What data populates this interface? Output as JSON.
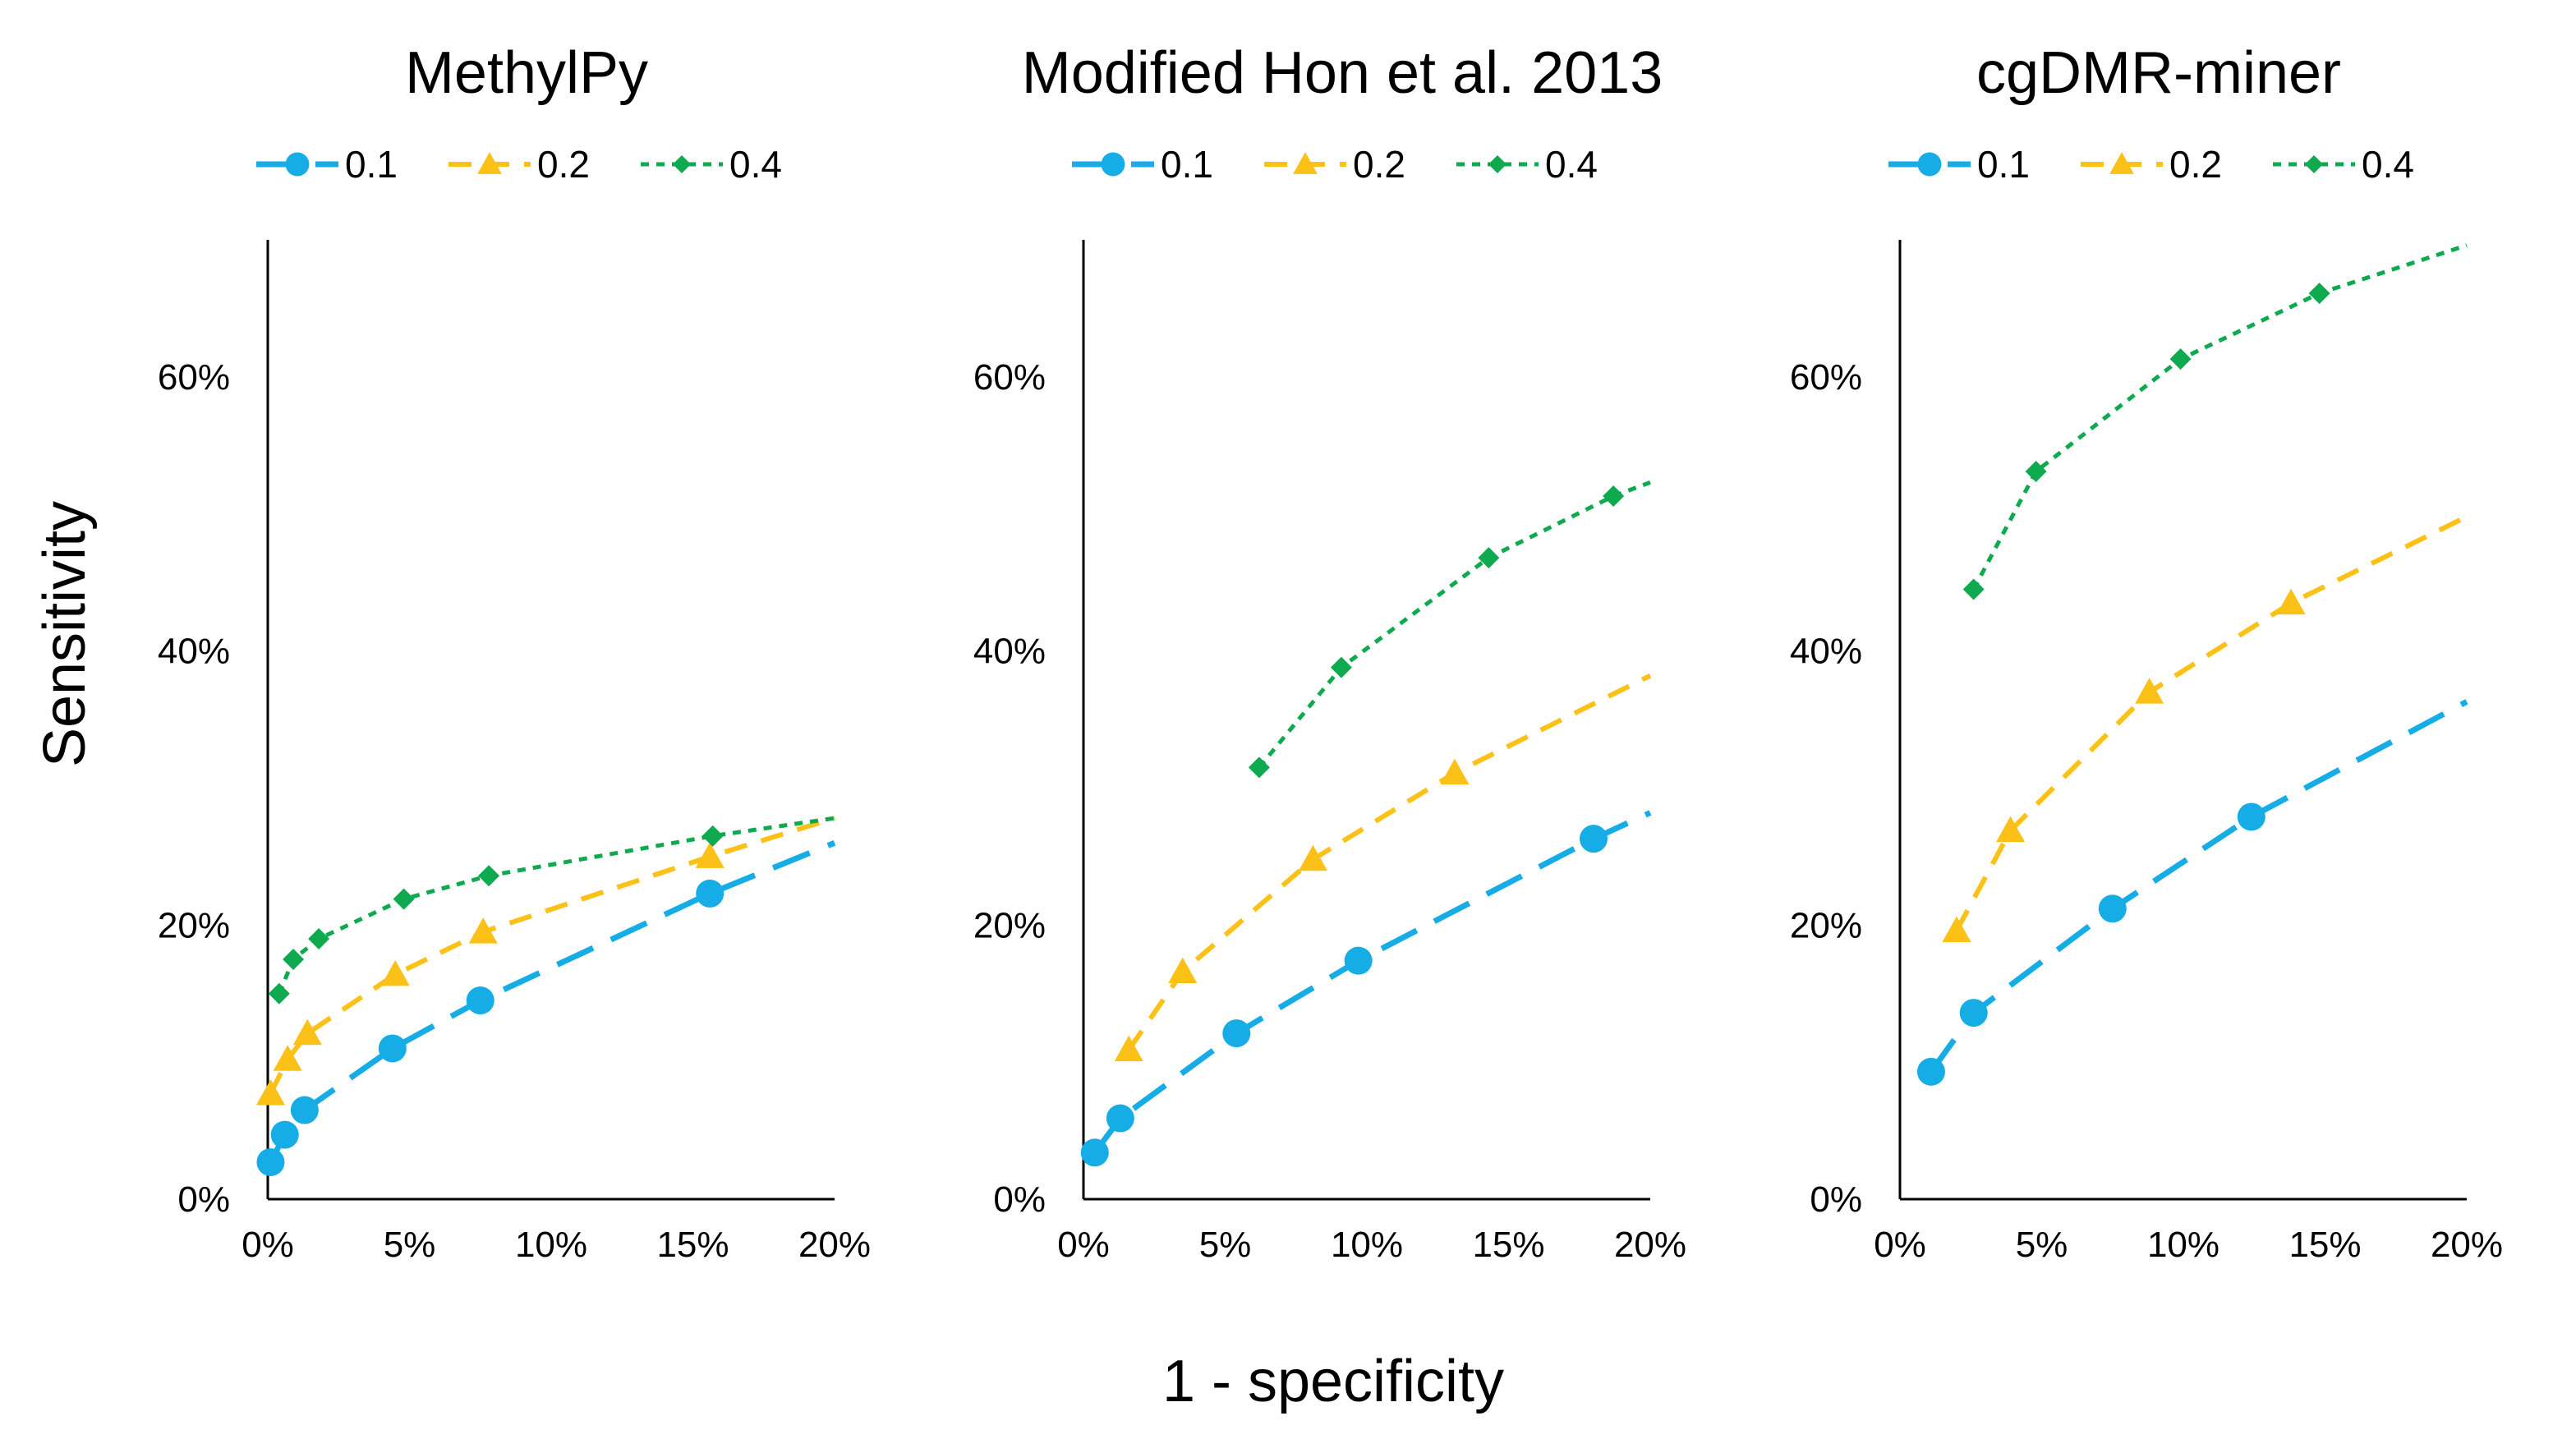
{
  "figure": {
    "ylabel": "Sensitivity",
    "xlabel": "1 - specificity"
  },
  "series_styles": [
    {
      "name": "0.1",
      "color": "#16ACE6",
      "marker": "circle",
      "dash": "long-dash"
    },
    {
      "name": "0.2",
      "color": "#FCC116",
      "marker": "triangle",
      "dash": "dash"
    },
    {
      "name": "0.4",
      "color": "#0FAA4F",
      "marker": "diamond",
      "dash": "dot"
    }
  ],
  "chart_data": [
    {
      "type": "line",
      "title": "MethylPy",
      "xlim": [
        0,
        0.2
      ],
      "ylim": [
        0,
        0.7
      ],
      "xticks": [
        "0%",
        "5%",
        "10%",
        "15%",
        "20%"
      ],
      "yticks": [
        "0%",
        "20%",
        "40%",
        "60%"
      ],
      "legend": [
        "0.1",
        "0.2",
        "0.4"
      ],
      "legend_position": "top",
      "grid": false,
      "series": [
        {
          "name": "0.1",
          "x": [
            0.001,
            0.006,
            0.013,
            0.044,
            0.075,
            0.156,
            0.2
          ],
          "y": [
            0.027,
            0.047,
            0.065,
            0.11,
            0.145,
            0.223,
            0.26
          ],
          "marked": [
            1,
            1,
            1,
            1,
            1,
            1,
            0
          ]
        },
        {
          "name": "0.2",
          "x": [
            0.001,
            0.007,
            0.014,
            0.045,
            0.076,
            0.156,
            0.2
          ],
          "y": [
            0.077,
            0.102,
            0.121,
            0.164,
            0.195,
            0.25,
            0.278
          ],
          "marked": [
            1,
            1,
            1,
            1,
            1,
            1,
            0
          ]
        },
        {
          "name": "0.4",
          "x": [
            0.004,
            0.009,
            0.018,
            0.048,
            0.078,
            0.157,
            0.2
          ],
          "y": [
            0.15,
            0.175,
            0.19,
            0.219,
            0.236,
            0.265,
            0.278
          ],
          "marked": [
            1,
            1,
            1,
            1,
            1,
            1,
            0
          ]
        }
      ]
    },
    {
      "type": "line",
      "title": "Modified Hon et al. 2013",
      "xlim": [
        0,
        0.2
      ],
      "ylim": [
        0,
        0.7
      ],
      "xticks": [
        "0%",
        "5%",
        "10%",
        "15%",
        "20%"
      ],
      "yticks": [
        "0%",
        "20%",
        "40%",
        "60%"
      ],
      "legend": [
        "0.1",
        "0.2",
        "0.4"
      ],
      "legend_position": "top",
      "grid": false,
      "series": [
        {
          "name": "0.1",
          "x": [
            0.004,
            0.013,
            0.054,
            0.097,
            0.18,
            0.2
          ],
          "y": [
            0.034,
            0.059,
            0.121,
            0.174,
            0.263,
            0.282
          ],
          "marked": [
            1,
            1,
            1,
            1,
            1,
            0
          ]
        },
        {
          "name": "0.2",
          "x": [
            0.016,
            0.035,
            0.081,
            0.131,
            0.2
          ],
          "y": [
            0.109,
            0.166,
            0.248,
            0.311,
            0.382
          ],
          "marked": [
            1,
            1,
            1,
            1,
            0
          ]
        },
        {
          "name": "0.4",
          "x": [
            0.062,
            0.091,
            0.143,
            0.187,
            0.2
          ],
          "y": [
            0.315,
            0.388,
            0.468,
            0.513,
            0.523
          ],
          "marked": [
            1,
            1,
            1,
            1,
            0
          ]
        }
      ]
    },
    {
      "type": "line",
      "title": "cgDMR-miner",
      "xlim": [
        0,
        0.2
      ],
      "ylim": [
        0,
        0.7
      ],
      "xticks": [
        "0%",
        "5%",
        "10%",
        "15%",
        "20%"
      ],
      "yticks": [
        "0%",
        "20%",
        "40%",
        "60%"
      ],
      "legend": [
        "0.1",
        "0.2",
        "0.4"
      ],
      "legend_position": "top",
      "grid": false,
      "series": [
        {
          "name": "0.1",
          "x": [
            0.011,
            0.026,
            0.075,
            0.124,
            0.2
          ],
          "y": [
            0.093,
            0.136,
            0.212,
            0.279,
            0.363
          ],
          "marked": [
            1,
            1,
            1,
            1,
            0
          ]
        },
        {
          "name": "0.2",
          "x": [
            0.02,
            0.039,
            0.088,
            0.138,
            0.2
          ],
          "y": [
            0.196,
            0.269,
            0.37,
            0.435,
            0.498
          ],
          "marked": [
            1,
            1,
            1,
            1,
            0
          ]
        },
        {
          "name": "0.4",
          "x": [
            0.026,
            0.048,
            0.099,
            0.148,
            0.2
          ],
          "y": [
            0.445,
            0.531,
            0.613,
            0.661,
            0.696
          ],
          "marked": [
            1,
            1,
            1,
            1,
            0
          ]
        }
      ]
    }
  ]
}
